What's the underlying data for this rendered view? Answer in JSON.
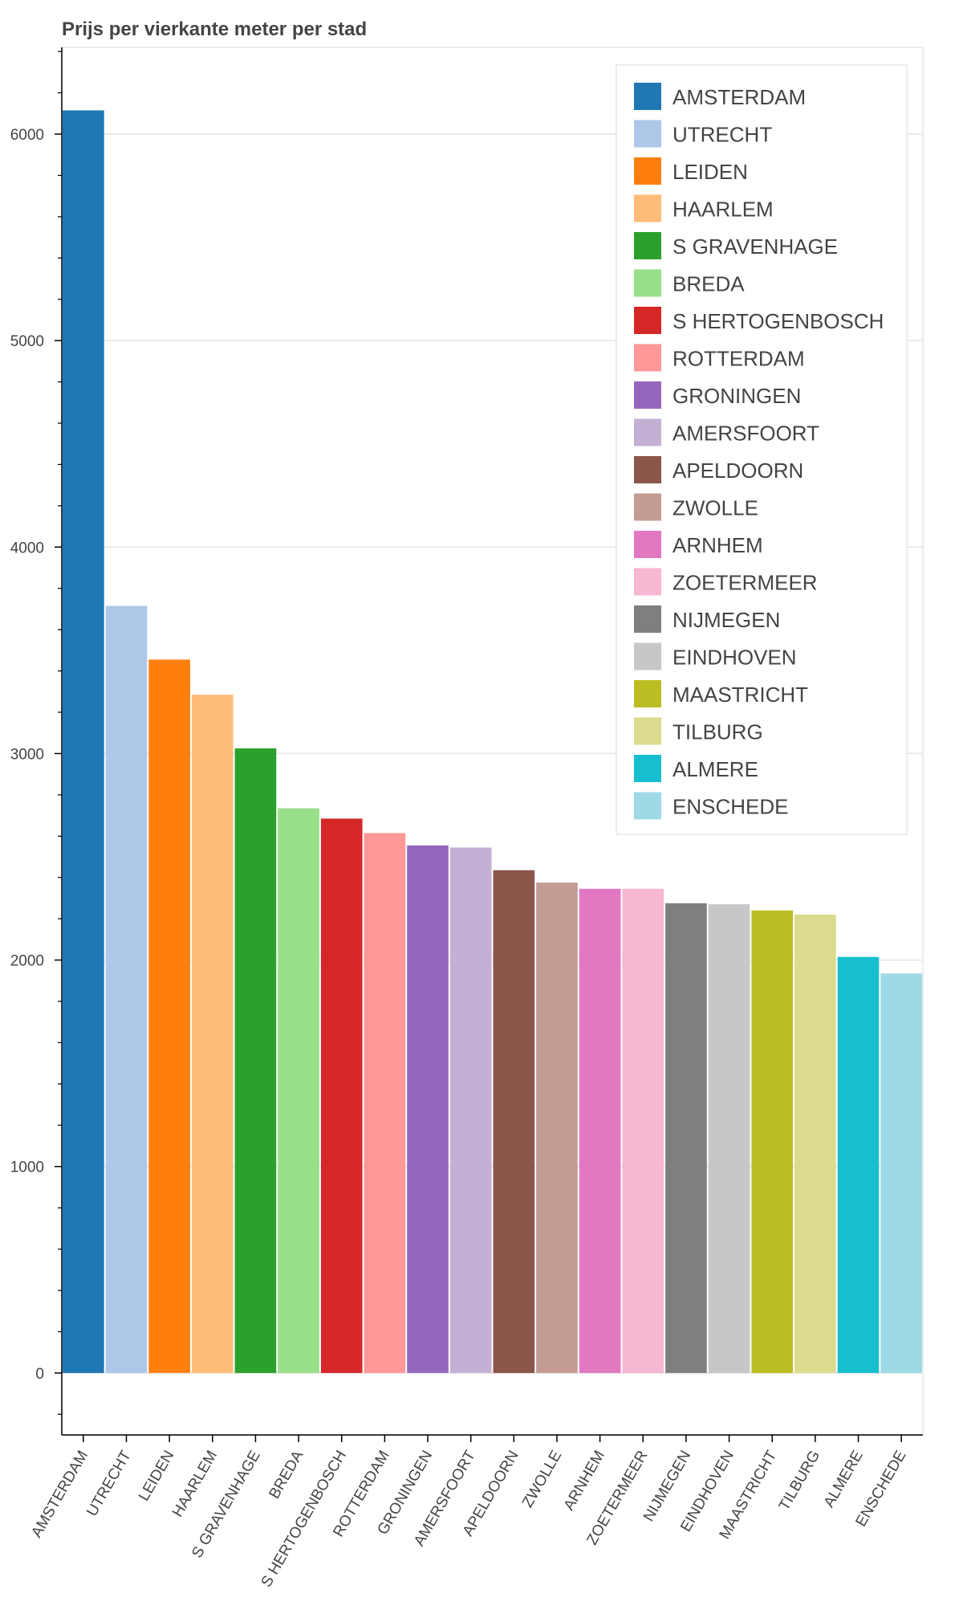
{
  "chart_data": {
    "type": "bar",
    "title": "Prijs per vierkante meter per stad",
    "xlabel": "",
    "ylabel": "",
    "ylim": [
      -300,
      6420
    ],
    "yticks": [
      0,
      1000,
      2000,
      3000,
      4000,
      5000,
      6000
    ],
    "ytick_labels": [
      "0",
      "1000",
      "2000",
      "3000",
      "4000",
      "5000",
      "6000"
    ],
    "grid": true,
    "legend_position": "top-right",
    "categories": [
      "AMSTERDAM",
      "UTRECHT",
      "LEIDEN",
      "HAARLEM",
      "S GRAVENHAGE",
      "BREDA",
      "S HERTOGENBOSCH",
      "ROTTERDAM",
      "GRONINGEN",
      "AMERSFOORT",
      "APELDOORN",
      "ZWOLLE",
      "ARNHEM",
      "ZOETERMEER",
      "NIJMEGEN",
      "EINDHOVEN",
      "MAASTRICHT",
      "TILBURG",
      "ALMERE",
      "ENSCHEDE"
    ],
    "values": [
      6115,
      3715,
      3455,
      3285,
      3025,
      2735,
      2685,
      2615,
      2555,
      2545,
      2435,
      2375,
      2345,
      2345,
      2275,
      2270,
      2240,
      2220,
      2015,
      1935
    ],
    "colors": [
      "#1f77b4",
      "#aec7e8",
      "#ff7f0e",
      "#ffbb78",
      "#2ca02c",
      "#98df8a",
      "#d62728",
      "#ff9896",
      "#9467bd",
      "#c5b0d5",
      "#8c564b",
      "#c49c94",
      "#e377c2",
      "#f7b6d2",
      "#7f7f7f",
      "#c7c7c7",
      "#bcbd22",
      "#dbdb8d",
      "#17becf",
      "#9edae5"
    ]
  }
}
